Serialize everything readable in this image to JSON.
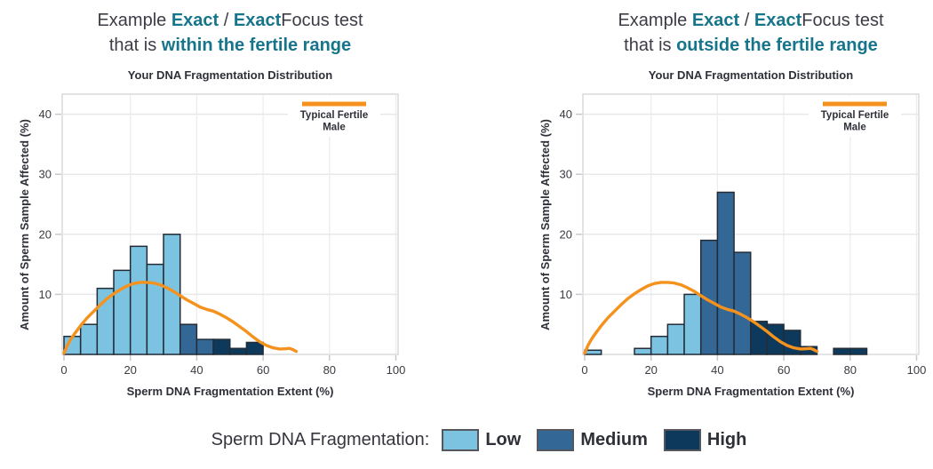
{
  "page": {
    "background": "#ffffff"
  },
  "palette": {
    "accent_teal": "#16758A",
    "text_dark": "#3C3C46",
    "title_text": "#2E3038",
    "low": "#7CC3E2",
    "medium": "#336795",
    "high": "#0D3A5C",
    "bar_outline": "#232C36",
    "curve_orange": "#F5921E",
    "gridline": "#E7E8EA",
    "vgridline": "#EDEDF0",
    "plot_border": "#D9DADC",
    "tick": "#C8C9CC",
    "tick_label": "#3A3B42"
  },
  "panels": [
    {
      "heading": {
        "line1": [
          {
            "text": "Example ",
            "accent": false
          },
          {
            "text": "Exact",
            "accent": true
          },
          {
            "text": " / ",
            "accent": false
          },
          {
            "text": "Exact",
            "accent": true
          },
          {
            "text": "Focus test",
            "accent": false
          }
        ],
        "line2": [
          {
            "text": "that is ",
            "accent": false
          },
          {
            "text": "within the fertile range",
            "accent": true
          }
        ]
      }
    },
    {
      "heading": {
        "line1": [
          {
            "text": "Example ",
            "accent": false
          },
          {
            "text": "Exact",
            "accent": true
          },
          {
            "text": " / ",
            "accent": false
          },
          {
            "text": "Exact",
            "accent": true
          },
          {
            "text": "Focus test",
            "accent": false
          }
        ],
        "line2": [
          {
            "text": "that is ",
            "accent": false
          },
          {
            "text": "outside the fertile range",
            "accent": true
          }
        ]
      }
    }
  ],
  "bottom_legend": {
    "label": "Sperm DNA Fragmentation:",
    "items": [
      {
        "label": "Low",
        "color_key": "low"
      },
      {
        "label": "Medium",
        "color_key": "medium"
      },
      {
        "label": "High",
        "color_key": "high"
      }
    ]
  },
  "chart_data": [
    {
      "type": "bar",
      "subtype": "histogram",
      "title": "Your DNA Fragmentation Distribution",
      "xlabel": "Sperm DNA Fragmentation Extent (%)",
      "ylabel": "Amount of Sperm Sample Affected (%)",
      "xlim": [
        0,
        100
      ],
      "ylim": [
        0,
        43
      ],
      "xticks": [
        0,
        20,
        40,
        60,
        80,
        100
      ],
      "yticks": [
        10,
        20,
        30,
        40
      ],
      "grid": true,
      "legend": {
        "label": "Typical Fertile Male",
        "lines": [
          "Typical Fertile",
          "Male"
        ],
        "position": "top-right"
      },
      "bins": [
        {
          "range": [
            0,
            5
          ],
          "value": 3,
          "level": "low"
        },
        {
          "range": [
            5,
            10
          ],
          "value": 5,
          "level": "low"
        },
        {
          "range": [
            10,
            15
          ],
          "value": 11,
          "level": "low"
        },
        {
          "range": [
            15,
            20
          ],
          "value": 14,
          "level": "low"
        },
        {
          "range": [
            20,
            25
          ],
          "value": 18,
          "level": "low"
        },
        {
          "range": [
            25,
            30
          ],
          "value": 15,
          "level": "low"
        },
        {
          "range": [
            30,
            35
          ],
          "value": 20,
          "level": "low"
        },
        {
          "range": [
            35,
            40
          ],
          "value": 5,
          "level": "medium"
        },
        {
          "range": [
            40,
            45
          ],
          "value": 2.5,
          "level": "medium"
        },
        {
          "range": [
            45,
            50
          ],
          "value": 2.5,
          "level": "high"
        },
        {
          "range": [
            50,
            55
          ],
          "value": 1,
          "level": "high"
        },
        {
          "range": [
            55,
            60
          ],
          "value": 2,
          "level": "high"
        }
      ],
      "curve": {
        "name": "Typical Fertile Male",
        "points": [
          [
            0,
            0.2
          ],
          [
            1,
            1.5
          ],
          [
            2,
            2.5
          ],
          [
            3,
            3.3
          ],
          [
            5,
            4.8
          ],
          [
            7,
            6.1
          ],
          [
            9,
            7.2
          ],
          [
            11,
            8.3
          ],
          [
            13,
            9.3
          ],
          [
            15,
            10.1
          ],
          [
            17,
            10.8
          ],
          [
            19,
            11.4
          ],
          [
            21,
            11.8
          ],
          [
            23,
            12
          ],
          [
            25,
            12
          ],
          [
            27,
            11.9
          ],
          [
            29,
            11.6
          ],
          [
            31,
            11.1
          ],
          [
            33,
            10.5
          ],
          [
            35,
            9.8
          ],
          [
            37,
            9.1
          ],
          [
            39,
            8.5
          ],
          [
            41,
            7.9
          ],
          [
            43,
            7.5
          ],
          [
            45,
            7.2
          ],
          [
            47,
            6.7
          ],
          [
            49,
            6.1
          ],
          [
            51,
            5.4
          ],
          [
            53,
            4.6
          ],
          [
            55,
            3.8
          ],
          [
            57,
            2.9
          ],
          [
            59,
            2.1
          ],
          [
            61,
            1.5
          ],
          [
            63,
            1.1
          ],
          [
            65,
            0.9
          ],
          [
            67,
            0.95
          ],
          [
            68,
            1
          ],
          [
            69,
            0.8
          ],
          [
            70,
            0.5
          ]
        ]
      }
    },
    {
      "type": "bar",
      "subtype": "histogram",
      "title": "Your DNA Fragmentation Distribution",
      "xlabel": "Sperm DNA Fragmentation Extent (%)",
      "ylabel": "Amount of Sperm Sample Affected (%)",
      "xlim": [
        0,
        100
      ],
      "ylim": [
        0,
        43
      ],
      "xticks": [
        0,
        20,
        40,
        60,
        80,
        100
      ],
      "yticks": [
        10,
        20,
        30,
        40
      ],
      "grid": true,
      "legend": {
        "label": "Typical Fertile Male",
        "lines": [
          "Typical Fertile",
          "Male"
        ],
        "position": "top-right"
      },
      "bins": [
        {
          "range": [
            0,
            5
          ],
          "value": 0.7,
          "level": "low"
        },
        {
          "range": [
            15,
            20
          ],
          "value": 1,
          "level": "low"
        },
        {
          "range": [
            20,
            25
          ],
          "value": 3,
          "level": "low"
        },
        {
          "range": [
            25,
            30
          ],
          "value": 5,
          "level": "low"
        },
        {
          "range": [
            30,
            35
          ],
          "value": 10,
          "level": "low"
        },
        {
          "range": [
            35,
            40
          ],
          "value": 19,
          "level": "medium"
        },
        {
          "range": [
            40,
            45
          ],
          "value": 27,
          "level": "medium"
        },
        {
          "range": [
            45,
            50
          ],
          "value": 17,
          "level": "medium"
        },
        {
          "range": [
            50,
            55
          ],
          "value": 5.5,
          "level": "high"
        },
        {
          "range": [
            55,
            60
          ],
          "value": 5,
          "level": "high"
        },
        {
          "range": [
            60,
            65
          ],
          "value": 4,
          "level": "high"
        },
        {
          "range": [
            65,
            70
          ],
          "value": 1.3,
          "level": "high"
        },
        {
          "range": [
            75,
            80
          ],
          "value": 1,
          "level": "high"
        },
        {
          "range": [
            80,
            85
          ],
          "value": 1,
          "level": "high"
        }
      ],
      "curve": {
        "name": "Typical Fertile Male",
        "points": [
          [
            0,
            0.2
          ],
          [
            1,
            1.5
          ],
          [
            2,
            2.5
          ],
          [
            3,
            3.3
          ],
          [
            5,
            4.8
          ],
          [
            7,
            6.1
          ],
          [
            9,
            7.2
          ],
          [
            11,
            8.3
          ],
          [
            13,
            9.3
          ],
          [
            15,
            10.1
          ],
          [
            17,
            10.8
          ],
          [
            19,
            11.4
          ],
          [
            21,
            11.8
          ],
          [
            23,
            12
          ],
          [
            25,
            12
          ],
          [
            27,
            11.9
          ],
          [
            29,
            11.6
          ],
          [
            31,
            11.1
          ],
          [
            33,
            10.5
          ],
          [
            35,
            9.8
          ],
          [
            37,
            9.1
          ],
          [
            39,
            8.5
          ],
          [
            41,
            7.9
          ],
          [
            43,
            7.5
          ],
          [
            45,
            7.2
          ],
          [
            47,
            6.7
          ],
          [
            49,
            6.1
          ],
          [
            51,
            5.4
          ],
          [
            53,
            4.6
          ],
          [
            55,
            3.8
          ],
          [
            57,
            2.9
          ],
          [
            59,
            2.1
          ],
          [
            61,
            1.5
          ],
          [
            63,
            1.1
          ],
          [
            65,
            0.9
          ],
          [
            67,
            0.95
          ],
          [
            68,
            1
          ],
          [
            69,
            0.8
          ],
          [
            70,
            0.5
          ]
        ]
      }
    }
  ]
}
